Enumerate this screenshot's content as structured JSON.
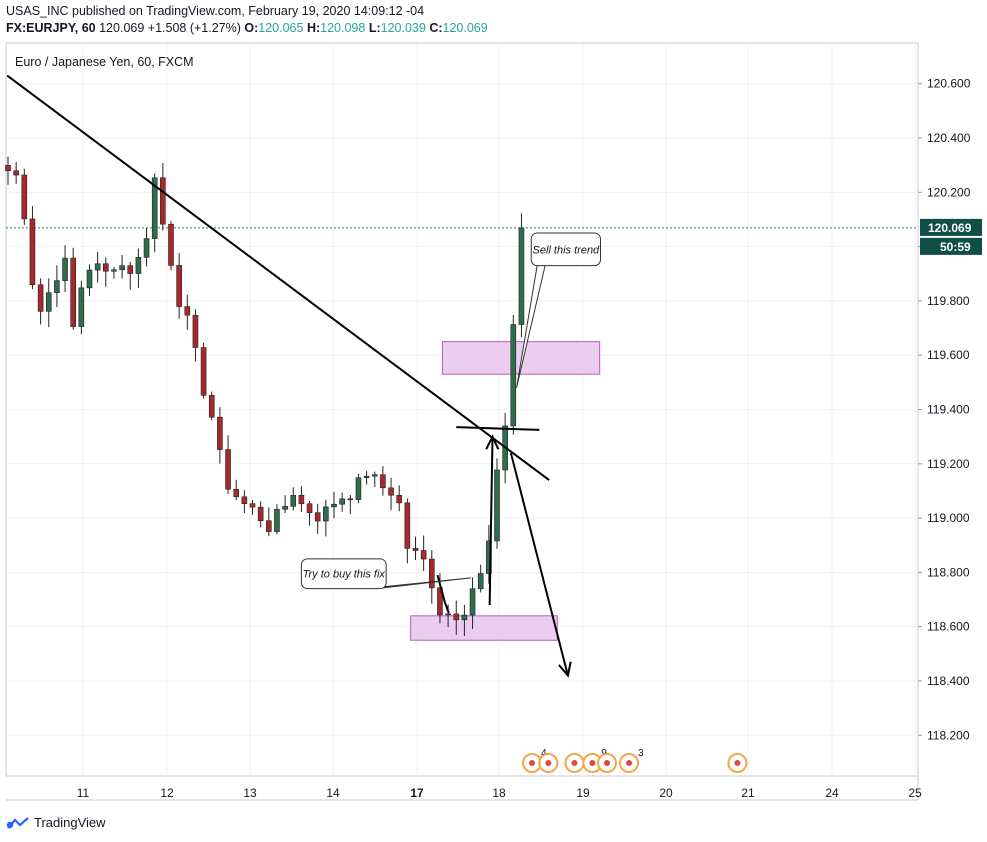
{
  "header": {
    "publisher": "USAS_INC published on TradingView.com, February 19, 2020 14:09:12 -04",
    "symbol": "FX:EURJPY, 60",
    "last": "120.069",
    "change": "+1.508 (+1.27%)",
    "o_label": "O:",
    "o_value": "120.065",
    "h_label": "H:",
    "h_value": "120.098",
    "l_label": "L:",
    "l_value": "120.039",
    "c_label": "C:",
    "c_value": "120.069"
  },
  "footer": {
    "brand": "TradingView"
  },
  "colors": {
    "up": "#26a69a",
    "down": "#a72a2a",
    "upCandle": "#2f6d4f",
    "zone_fill": "#e9c8ee",
    "zone_stroke": "#b24ac0",
    "price_tag": "#0f4f47"
  },
  "chart_data": {
    "type": "candlestick",
    "title": "Euro / Japanese Yen, 60, FXCM",
    "ylim": [
      118.05,
      120.75
    ],
    "y_ticks": [
      "118.200",
      "118.400",
      "118.600",
      "118.800",
      "119.000",
      "119.200",
      "119.400",
      "119.600",
      "119.800",
      "120.000",
      "120.200",
      "120.400",
      "120.600"
    ],
    "x_ticks": [
      "11",
      "12",
      "13",
      "14",
      "17",
      "18",
      "19",
      "20",
      "21",
      "24",
      "25"
    ],
    "x_ticks_bold": [
      "17"
    ],
    "last_price_label": "120.069",
    "countdown_label": "50:59",
    "path": [
      [
        0,
        120.28
      ],
      [
        1.5,
        120.25
      ],
      [
        2.5,
        120.0
      ],
      [
        3.5,
        119.75
      ],
      [
        4.5,
        119.78
      ],
      [
        5.5,
        119.88
      ],
      [
        6.5,
        119.92
      ],
      [
        7.5,
        119.95
      ],
      [
        8,
        119.7
      ],
      [
        9.5,
        119.93
      ],
      [
        11,
        119.92
      ],
      [
        12,
        119.9
      ],
      [
        13.5,
        119.96
      ],
      [
        14.5,
        119.9
      ],
      [
        16,
        119.95
      ],
      [
        17,
        120.05
      ],
      [
        18,
        120.25
      ],
      [
        19.5,
        120.0
      ],
      [
        20.5,
        119.9
      ],
      [
        21.3,
        119.75
      ],
      [
        22.5,
        119.7
      ],
      [
        23.5,
        119.5
      ],
      [
        24.5,
        119.45
      ],
      [
        25.5,
        119.3
      ],
      [
        26.5,
        119.15
      ],
      [
        27.5,
        119.1
      ],
      [
        29,
        119.05
      ],
      [
        30.5,
        119.02
      ],
      [
        32,
        118.97
      ],
      [
        33.5,
        119.02
      ],
      [
        35,
        119.1
      ],
      [
        36,
        119.05
      ],
      [
        37.5,
        119.02
      ],
      [
        38.5,
        119.0
      ],
      [
        39.5,
        119.05
      ],
      [
        41,
        119.08
      ],
      [
        42.5,
        119.1
      ],
      [
        44,
        119.17
      ],
      [
        45.5,
        119.12
      ],
      [
        47,
        119.1
      ],
      [
        48,
        119.05
      ],
      [
        48.8,
        118.9
      ],
      [
        49.5,
        118.88
      ],
      [
        50.5,
        118.85
      ],
      [
        51.5,
        118.83
      ],
      [
        52.5,
        118.7
      ],
      [
        53.5,
        118.62
      ],
      [
        54.5,
        118.68
      ],
      [
        55.5,
        118.62
      ],
      [
        56.5,
        118.72
      ],
      [
        57.5,
        118.77
      ],
      [
        58.5,
        118.8
      ],
      [
        59.2,
        118.95
      ],
      [
        59.8,
        119.1
      ],
      [
        60.4,
        119.25
      ],
      [
        61,
        119.35
      ],
      [
        61.6,
        119.55
      ],
      [
        62.2,
        119.8
      ],
      [
        62.8,
        120.05
      ]
    ],
    "trendlines": [
      {
        "name": "descending-trendline",
        "from": [
          -0.1,
          120.63
        ],
        "to": [
          66.4,
          119.14
        ]
      },
      {
        "name": "horizontal-level",
        "from": [
          55,
          119.335
        ],
        "to": [
          65.2,
          119.325
        ]
      }
    ],
    "arrows": [
      {
        "name": "up-arrow",
        "from": [
          59.1,
          118.68
        ],
        "to": [
          59.45,
          119.3
        ]
      },
      {
        "name": "down-arrow",
        "from": [
          61.7,
          119.24
        ],
        "to": [
          68.7,
          118.42
        ]
      }
    ],
    "small_strokes": [
      {
        "name": "small-dip-stroke-1",
        "from": [
          52.7,
          118.79
        ],
        "to": [
          53.6,
          118.69
        ]
      },
      {
        "name": "small-dip-stroke-2",
        "from": [
          53.6,
          118.69
        ],
        "to": [
          54.1,
          118.65
        ]
      }
    ],
    "zones": [
      {
        "name": "supply-zone",
        "x0": 53.3,
        "x1": 72.6,
        "y0": 119.53,
        "y1": 119.65
      },
      {
        "name": "demand-zone",
        "x0": 49.4,
        "x1": 67.4,
        "y0": 118.55,
        "y1": 118.64
      }
    ],
    "annotations": [
      {
        "name": "sell-callout",
        "text": "Sell this trend",
        "box_x0": 64.2,
        "box_x1": 72.7,
        "box_y0": 119.93,
        "box_y1": 120.05,
        "tip": [
          62.4,
          119.48
        ]
      },
      {
        "name": "buy-callout",
        "text": "Try to buy this fix",
        "box_x0": 36.0,
        "box_x1": 46.4,
        "box_y0": 118.74,
        "box_y1": 118.85,
        "tip": [
          56.8,
          118.78
        ]
      }
    ],
    "events": [
      {
        "x": 64.3,
        "label": "4"
      },
      {
        "x": 66.3,
        "label": ""
      },
      {
        "x": 69.5,
        "label": ""
      },
      {
        "x": 71.7,
        "label": "9"
      },
      {
        "x": 73.5,
        "label": ""
      },
      {
        "x": 76.2,
        "label": "3"
      },
      {
        "x": 89.5,
        "label": ""
      }
    ]
  }
}
